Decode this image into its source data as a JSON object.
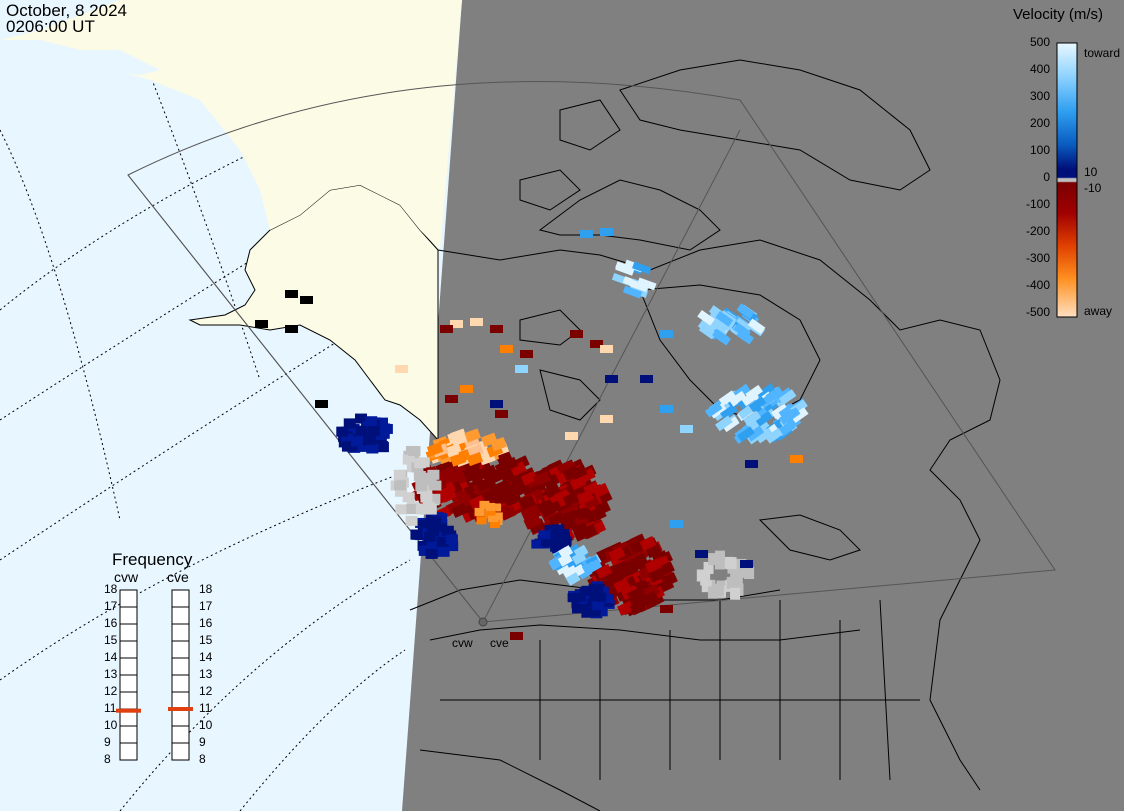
{
  "header": {
    "date": "October, 8 2024",
    "time": "0206:00 UT"
  },
  "legend": {
    "title": "Velocity (m/s)",
    "ticks": [
      "500",
      "400",
      "300",
      "200",
      "100",
      "0",
      "-100",
      "-200",
      "-300",
      "-400",
      "-500"
    ],
    "side_labels": {
      "toward": "toward",
      "pos10": "10",
      "neg10": "-10",
      "away": "away"
    },
    "colors": {
      "toward_light": "#dff4ff",
      "toward_mid": "#2f9ff0",
      "toward_dark": "#00107a",
      "zero_gray": "#bebebe",
      "away_dark": "#7a0000",
      "away_mid": "#ff7f00",
      "away_light": "#ffd8b0"
    }
  },
  "frequency": {
    "title": "Frequency",
    "radars": [
      {
        "name": "cvw",
        "value_mhz": 10.9
      },
      {
        "name": "cve",
        "value_mhz": 11.0
      }
    ],
    "ticks": [
      "18",
      "17",
      "16",
      "15",
      "14",
      "13",
      "12",
      "11",
      "10",
      "9",
      "8"
    ]
  },
  "map_labels": {
    "radar_a": "cvw",
    "radar_b": "cve"
  },
  "map_colors": {
    "ocean_day": "#e8f6ff",
    "land_day": "#fbfbe6",
    "night": "#808080",
    "coast": "#000000"
  }
}
